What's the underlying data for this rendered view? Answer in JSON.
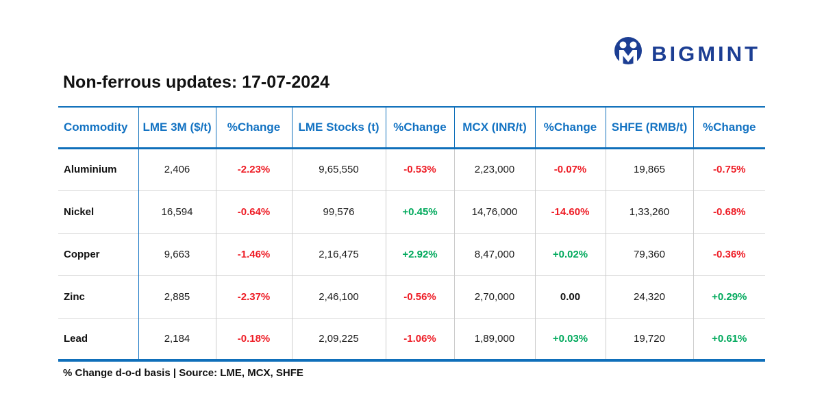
{
  "logo": {
    "brand": "BIGMINT",
    "icon": "bigmint-circle-m-icon",
    "color": "#1c3e93"
  },
  "title": "Non-ferrous updates: 17-07-2024",
  "table": {
    "headers": [
      "Commodity",
      "LME 3M ($/t)",
      "%Change",
      "LME Stocks (t)",
      "%Change",
      "MCX (INR/t)",
      "%Change",
      "SHFE (RMB/t)",
      "%Change"
    ],
    "rows": [
      {
        "cells": [
          {
            "text": "Aluminium",
            "kind": "commodity"
          },
          {
            "text": "2,406",
            "kind": "value"
          },
          {
            "text": "-2.23%",
            "kind": "neg"
          },
          {
            "text": "9,65,550",
            "kind": "value"
          },
          {
            "text": "-0.53%",
            "kind": "neg"
          },
          {
            "text": "2,23,000",
            "kind": "value"
          },
          {
            "text": "-0.07%",
            "kind": "neg"
          },
          {
            "text": "19,865",
            "kind": "value"
          },
          {
            "text": "-0.75%",
            "kind": "neg"
          }
        ]
      },
      {
        "cells": [
          {
            "text": "Nickel",
            "kind": "commodity"
          },
          {
            "text": "16,594",
            "kind": "value"
          },
          {
            "text": "-0.64%",
            "kind": "neg"
          },
          {
            "text": "99,576",
            "kind": "value"
          },
          {
            "text": "+0.45%",
            "kind": "pos"
          },
          {
            "text": "14,76,000",
            "kind": "value"
          },
          {
            "text": "-14.60%",
            "kind": "neg"
          },
          {
            "text": "1,33,260",
            "kind": "value"
          },
          {
            "text": "-0.68%",
            "kind": "neg"
          }
        ]
      },
      {
        "cells": [
          {
            "text": "Copper",
            "kind": "commodity"
          },
          {
            "text": "9,663",
            "kind": "value"
          },
          {
            "text": "-1.46%",
            "kind": "neg"
          },
          {
            "text": "2,16,475",
            "kind": "value"
          },
          {
            "text": "+2.92%",
            "kind": "pos"
          },
          {
            "text": "8,47,000",
            "kind": "value"
          },
          {
            "text": "+0.02%",
            "kind": "pos"
          },
          {
            "text": "79,360",
            "kind": "value"
          },
          {
            "text": "-0.36%",
            "kind": "neg"
          }
        ]
      },
      {
        "cells": [
          {
            "text": "Zinc",
            "kind": "commodity"
          },
          {
            "text": "2,885",
            "kind": "value"
          },
          {
            "text": "-2.37%",
            "kind": "neg"
          },
          {
            "text": "2,46,100",
            "kind": "value"
          },
          {
            "text": "-0.56%",
            "kind": "neg"
          },
          {
            "text": "2,70,000",
            "kind": "value"
          },
          {
            "text": "0.00",
            "kind": "zero"
          },
          {
            "text": "24,320",
            "kind": "value"
          },
          {
            "text": "+0.29%",
            "kind": "pos"
          }
        ]
      },
      {
        "cells": [
          {
            "text": "Lead",
            "kind": "commodity"
          },
          {
            "text": "2,184",
            "kind": "value"
          },
          {
            "text": "-0.18%",
            "kind": "neg"
          },
          {
            "text": "2,09,225",
            "kind": "value"
          },
          {
            "text": "-1.06%",
            "kind": "neg"
          },
          {
            "text": "1,89,000",
            "kind": "value"
          },
          {
            "text": "+0.03%",
            "kind": "pos"
          },
          {
            "text": "19,720",
            "kind": "value"
          },
          {
            "text": "+0.61%",
            "kind": "pos"
          }
        ]
      }
    ]
  },
  "footer": "% Change d-o-d basis | Source: LME, MCX, SHFE",
  "colors": {
    "header_blue": "#1272c2",
    "border_blue": "#0f6fba",
    "negative_red": "#ee1c25",
    "positive_green": "#00a95c",
    "logo_navy": "#1c3e93",
    "row_divider_gray": "#d8d8d8"
  },
  "chart_data": {
    "type": "table",
    "title": "Non-ferrous updates: 17-07-2024",
    "columns": [
      "Commodity",
      "LME 3M ($/t)",
      "%Change",
      "LME Stocks (t)",
      "%Change",
      "MCX (INR/t)",
      "%Change",
      "SHFE (RMB/t)",
      "%Change"
    ],
    "rows": [
      [
        "Aluminium",
        2406,
        -2.23,
        965550,
        -0.53,
        223000,
        -0.07,
        19865,
        -0.75
      ],
      [
        "Nickel",
        16594,
        -0.64,
        99576,
        0.45,
        1476000,
        -14.6,
        133260,
        -0.68
      ],
      [
        "Copper",
        9663,
        -1.46,
        216475,
        2.92,
        847000,
        0.02,
        79360,
        -0.36
      ],
      [
        "Zinc",
        2885,
        -2.37,
        246100,
        -0.56,
        270000,
        0.0,
        24320,
        0.29
      ],
      [
        "Lead",
        2184,
        -0.18,
        209225,
        -1.06,
        189000,
        0.03,
        19720,
        0.61
      ]
    ],
    "annotations": [
      "% Change d-o-d basis | Source: LME, MCX, SHFE"
    ]
  }
}
